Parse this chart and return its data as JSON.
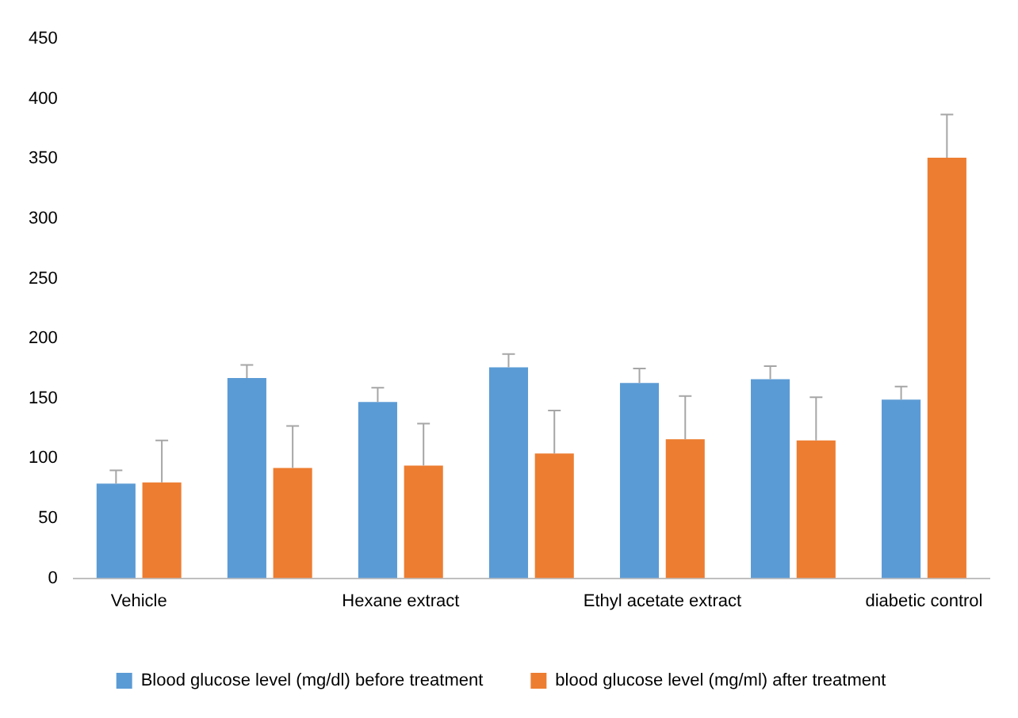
{
  "chart_data": {
    "type": "bar",
    "categories": [
      "Vehicle",
      null,
      "Hexane extract",
      null,
      "Ethyl acetate extract",
      null,
      "diabetic control"
    ],
    "series": [
      {
        "name": "Blood glucose level (mg/dl) before treatment",
        "color": "#5b9bd5",
        "values": [
          79,
          167,
          147,
          176,
          163,
          166,
          149
        ],
        "errors": [
          [
            79,
            90
          ],
          [
            167,
            178
          ],
          [
            147,
            159
          ],
          [
            176,
            187
          ],
          [
            163,
            175
          ],
          [
            166,
            177
          ],
          [
            149,
            160
          ]
        ]
      },
      {
        "name": "blood glucose level (mg/ml) after treatment",
        "color": "#ed7d31",
        "values": [
          80,
          92,
          94,
          104,
          116,
          115,
          351
        ],
        "errors": [
          [
            80,
            115
          ],
          [
            92,
            127
          ],
          [
            94,
            129
          ],
          [
            104,
            140
          ],
          [
            116,
            152
          ],
          [
            115,
            151
          ],
          [
            351,
            387
          ]
        ]
      }
    ],
    "ylim": [
      0,
      450
    ],
    "yticks": [
      0,
      50,
      100,
      150,
      200,
      250,
      300,
      350,
      400,
      450
    ],
    "grid": false,
    "legend": "bottom"
  }
}
